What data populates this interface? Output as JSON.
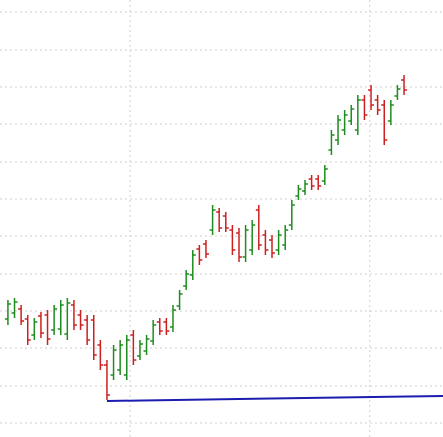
{
  "chart_data": {
    "type": "ohlc",
    "x": [
      0,
      1,
      2,
      3,
      4,
      5,
      6,
      7,
      8,
      9,
      10,
      11,
      12,
      13,
      14,
      15,
      16,
      17,
      18,
      19,
      20,
      21,
      22,
      23,
      24,
      25,
      26,
      27,
      28,
      29,
      30,
      31,
      32,
      33,
      34,
      35,
      36,
      37,
      38,
      39,
      40,
      41,
      42,
      43,
      44,
      45,
      46,
      47,
      48,
      49,
      50,
      51,
      52,
      53,
      54,
      55,
      56,
      57,
      58,
      59,
      60
    ],
    "open": [
      118,
      124,
      128,
      118,
      102,
      121,
      122,
      107,
      108,
      103,
      132,
      122,
      117,
      117,
      92,
      72,
      62,
      67,
      62,
      102,
      81,
      86,
      96,
      115,
      115,
      110,
      131,
      151,
      162,
      188,
      193,
      207,
      225,
      221,
      207,
      204,
      180,
      187,
      227,
      202,
      197,
      187,
      192,
      212,
      241,
      246,
      258,
      258,
      256,
      287,
      297,
      307,
      316,
      307,
      337,
      347,
      337,
      332,
      316,
      341,
      357
    ],
    "high": [
      137,
      139,
      132,
      122,
      119,
      125,
      127,
      132,
      137,
      139,
      137,
      127,
      122,
      122,
      97,
      77,
      92,
      97,
      102,
      107,
      97,
      102,
      117,
      119,
      119,
      132,
      147,
      167,
      187,
      192,
      197,
      232,
      229,
      225,
      212,
      209,
      212,
      217,
      232,
      207,
      202,
      207,
      212,
      237,
      252,
      257,
      262,
      262,
      272,
      307,
      322,
      327,
      332,
      342,
      342,
      352,
      342,
      337,
      337,
      352,
      362
    ],
    "low": [
      112,
      119,
      112,
      92,
      97,
      99,
      92,
      102,
      102,
      97,
      107,
      107,
      92,
      77,
      67,
      37,
      57,
      62,
      57,
      72,
      77,
      82,
      92,
      102,
      102,
      105,
      127,
      147,
      157,
      172,
      179,
      202,
      205,
      205,
      182,
      175,
      175,
      182,
      187,
      182,
      179,
      182,
      187,
      207,
      237,
      242,
      247,
      247,
      252,
      282,
      292,
      302,
      312,
      302,
      317,
      327,
      322,
      292,
      312,
      337,
      342
    ],
    "close": [
      133,
      135,
      116,
      97,
      115,
      104,
      98,
      128,
      132,
      134,
      112,
      112,
      97,
      82,
      72,
      42,
      87,
      92,
      97,
      77,
      93,
      98,
      112,
      106,
      106,
      127,
      143,
      163,
      182,
      177,
      183,
      227,
      209,
      209,
      187,
      180,
      207,
      212,
      192,
      187,
      184,
      202,
      207,
      232,
      248,
      253,
      251,
      251,
      268,
      302,
      317,
      322,
      328,
      337,
      322,
      332,
      327,
      297,
      332,
      348,
      347
    ],
    "up_color": "#1e8c1e",
    "down_color": "#cc2020",
    "line": {
      "color": "#1c1cb0",
      "x": [
        15,
        65.9
      ],
      "values": [
        36,
        41
      ]
    },
    "xlim": [
      -1.2,
      65.9
    ],
    "xticks": [
      18.5,
      54.8
    ],
    "ylim": [
      0,
      437
    ],
    "yticks": [
      14,
      51,
      89,
      126,
      163,
      201,
      238,
      275,
      313,
      350,
      387,
      425
    ],
    "grid": true
  }
}
